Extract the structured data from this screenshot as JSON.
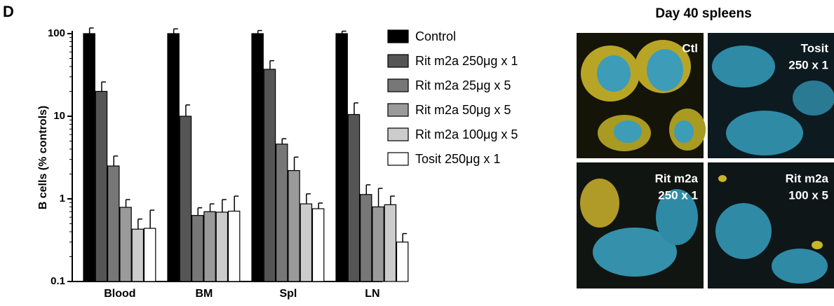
{
  "panel_label": "D",
  "chart_data": {
    "type": "bar",
    "y_label": "B cells (% controls)",
    "log_y": true,
    "categories": [
      "Blood",
      "BM",
      "Spl",
      "LN"
    ],
    "ylim": [
      0.1,
      100
    ],
    "yticks": [
      0.1,
      1,
      10,
      100
    ],
    "legend": "right",
    "series": [
      {
        "name": "Control",
        "color": "#000000",
        "values": [
          100,
          100,
          100,
          100
        ],
        "errors": [
          17,
          14,
          9,
          7
        ]
      },
      {
        "name": "Rit m2a 250μg x 1",
        "color": "#555555",
        "values": [
          20,
          10,
          37,
          10.5
        ],
        "errors": [
          6,
          3.7,
          10,
          4
        ]
      },
      {
        "name": "Rit m2a 25μg x 5",
        "color": "#777777",
        "values": [
          2.5,
          0.63,
          4.6,
          1.13
        ],
        "errors": [
          0.8,
          0.15,
          0.75,
          0.35
        ]
      },
      {
        "name": "Rit m2a 50μg x 5",
        "color": "#9a9a9a",
        "values": [
          0.79,
          0.7,
          2.2,
          0.8
        ],
        "errors": [
          0.19,
          0.17,
          1,
          0.54
        ]
      },
      {
        "name": "Rit m2a 100μg x 5",
        "color": "#cccccc",
        "values": [
          0.43,
          0.69,
          0.87,
          0.85
        ],
        "errors": [
          0.14,
          0.29,
          0.28,
          0.23
        ]
      },
      {
        "name": "Tosit 250μg x 1",
        "color": "#ffffff",
        "values": [
          0.44,
          0.71,
          0.76,
          0.3
        ],
        "errors": [
          0.29,
          0.37,
          0.13,
          0.08
        ]
      }
    ]
  },
  "micrographs": {
    "title": "Day 40 spleens",
    "panels": [
      {
        "label": [
          "Ctl"
        ]
      },
      {
        "label": [
          "Tosit",
          "250 x 1"
        ]
      },
      {
        "label": [
          "Rit m2a",
          "250 x 1"
        ]
      },
      {
        "label": [
          "Rit m2a",
          "100 x 5"
        ]
      }
    ]
  }
}
